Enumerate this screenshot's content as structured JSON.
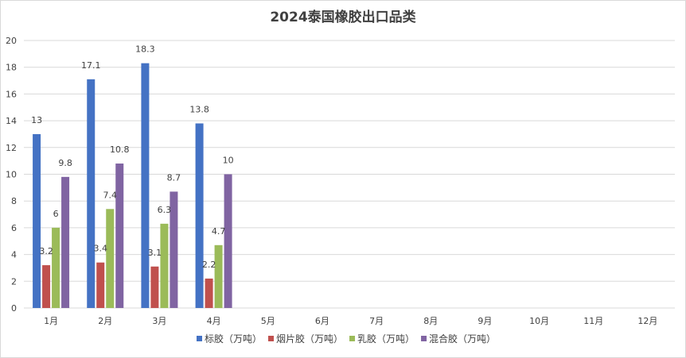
{
  "chart_data": {
    "type": "bar",
    "title": "2024泰国橡胶出口品类",
    "categories": [
      "1月",
      "2月",
      "3月",
      "4月",
      "5月",
      "6月",
      "7月",
      "8月",
      "9月",
      "10月",
      "11月",
      "12月"
    ],
    "series": [
      {
        "name": "标胶（万吨）",
        "color": "#4472C4",
        "values": [
          13,
          17.1,
          18.3,
          13.8,
          null,
          null,
          null,
          null,
          null,
          null,
          null,
          null
        ]
      },
      {
        "name": "烟片胶（万吨）",
        "color": "#C0504D",
        "values": [
          3.2,
          3.4,
          3.1,
          2.2,
          null,
          null,
          null,
          null,
          null,
          null,
          null,
          null
        ]
      },
      {
        "name": "乳胶（万吨）",
        "color": "#9BBB59",
        "values": [
          6,
          7.4,
          6.3,
          4.7,
          null,
          null,
          null,
          null,
          null,
          null,
          null,
          null
        ]
      },
      {
        "name": "混合胶（万吨）",
        "color": "#8064A2",
        "values": [
          9.8,
          10.8,
          8.7,
          10,
          null,
          null,
          null,
          null,
          null,
          null,
          null,
          null
        ]
      }
    ],
    "ylim": [
      0,
      20
    ],
    "yticks": [
      0,
      2,
      4,
      6,
      8,
      10,
      12,
      14,
      16,
      18,
      20
    ],
    "grid": true,
    "legend": "bottom",
    "xlabel": "",
    "ylabel": ""
  }
}
